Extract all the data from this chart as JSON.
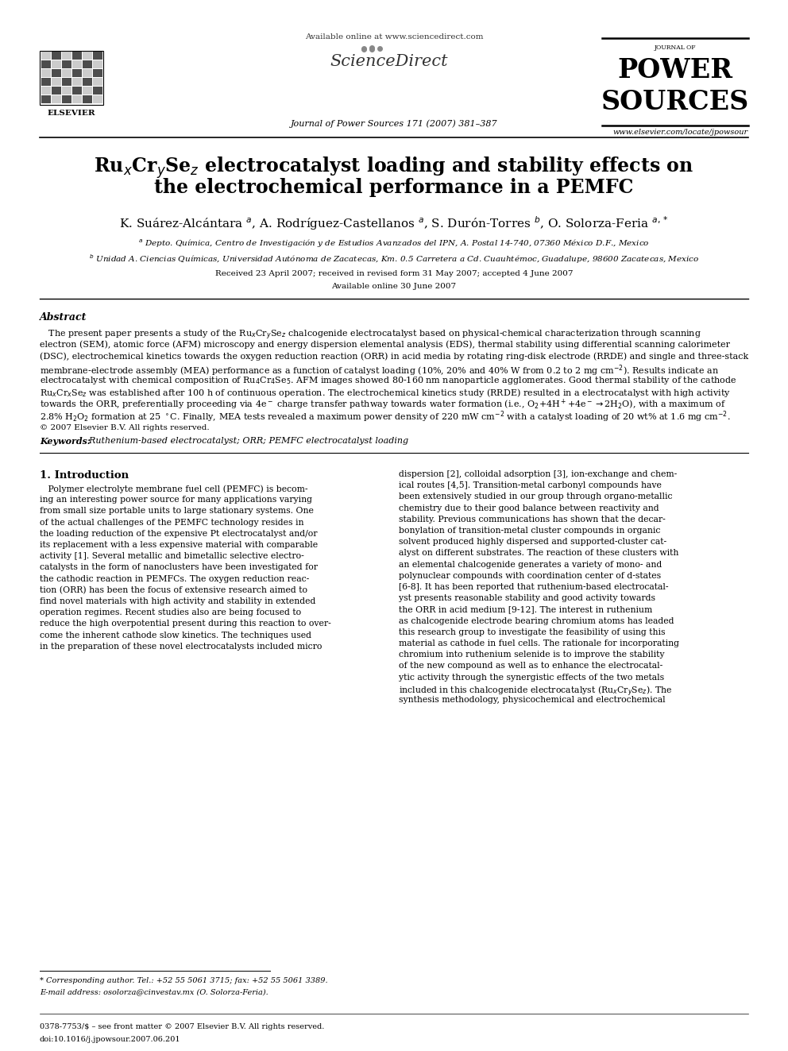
{
  "title_line1": "Ru$_x$Cr$_y$Se$_z$ electrocatalyst loading and stability effects on",
  "title_line2": "the electrochemical performance in a PEMFC",
  "authors": "K. Suárez-Alcántara $^a$, A. Rodríguez-Castellanos $^a$, S. Durón-Torres $^b$, O. Solorza-Feria $^{a,*}$",
  "affil_a": "$^a$ Depto. Química, Centro de Investigación y de Estudios Avanzados del IPN, A. Postal 14-740, 07360 México D.F., Mexico",
  "affil_b": "$^b$ Unidad A. Ciencias Químicas, Universidad Autónoma de Zacatecas, Km. 0.5 Carretera a Cd. Cuauhtémoc, Guadalupe, 98600 Zacatecas, Mexico",
  "received": "Received 23 April 2007; received in revised form 31 May 2007; accepted 4 June 2007",
  "available": "Available online 30 June 2007",
  "journal": "Journal of Power Sources 171 (2007) 381–387",
  "url": "www.elsevier.com/locate/jpowsour",
  "available_online": "Available online at www.sciencedirect.com",
  "abstract_title": "Abstract",
  "copyright": "© 2007 Elsevier B.V. All rights reserved.",
  "keywords_label": "Keywords:",
  "keywords": "  Ruthenium-based electrocatalyst; ORR; PEMFC electrocatalyst loading",
  "intro_title": "1. Introduction",
  "footnote1": "* Corresponding author. Tel.: +52 55 5061 3715; fax: +52 55 5061 3389.",
  "footnote2": "E-mail address: osolorza@cinvestav.mx (O. Solorza-Feria).",
  "footer_issn": "0378-7753/$ – see front matter © 2007 Elsevier B.V. All rights reserved.",
  "footer_doi": "doi:10.1016/j.jpowsour.2007.06.201",
  "bg_color": "#ffffff",
  "text_color": "#000000"
}
